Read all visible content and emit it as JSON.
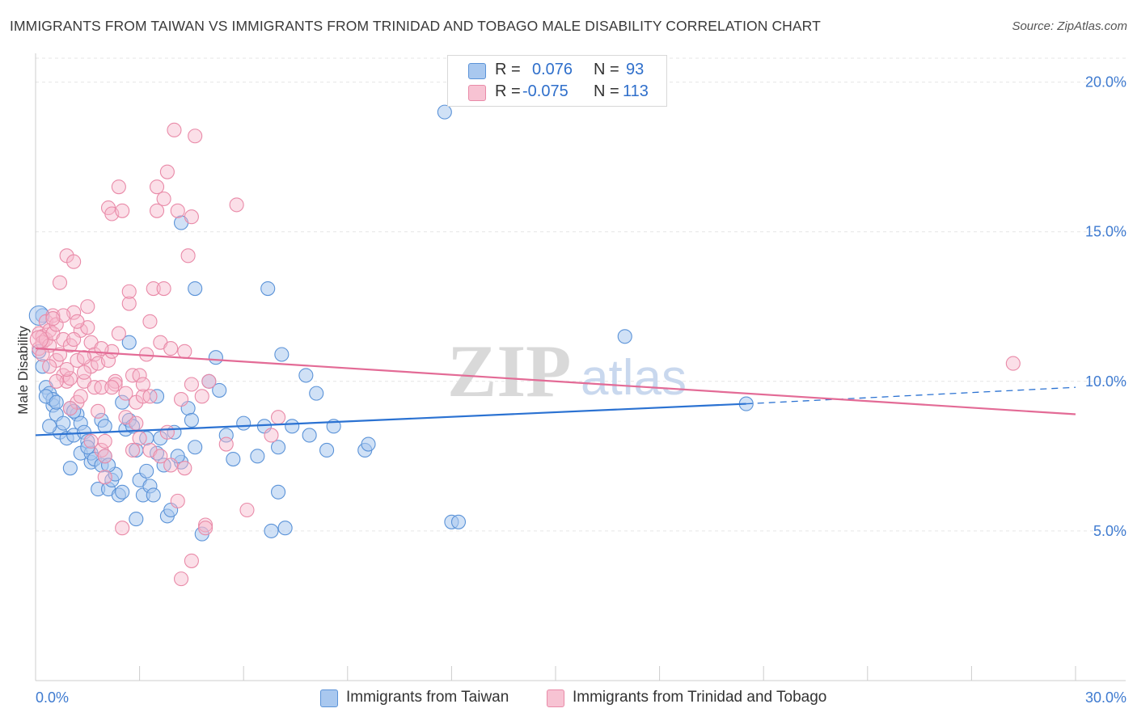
{
  "header": {
    "title": "IMMIGRANTS FROM TAIWAN VS IMMIGRANTS FROM TRINIDAD AND TOBAGO MALE DISABILITY CORRELATION CHART",
    "source": "Source: ZipAtlas.com"
  },
  "watermark": {
    "zip": "ZIP",
    "atlas": "atlas"
  },
  "legend": {
    "r_label": "R =",
    "n_label": "N =",
    "rows": [
      {
        "r": "0.076",
        "n": "93",
        "color": "#8ab4e8"
      },
      {
        "r": "-0.075",
        "n": "113",
        "color": "#f4a7bf"
      }
    ]
  },
  "colors": {
    "blue_fill": "#a9c8ef",
    "blue_stroke": "#5b93d8",
    "blue_line": "#2b72d2",
    "pink_fill": "#f7b8cb",
    "pink_stroke": "#e98aa8",
    "pink_line": "#e36b96",
    "axis_text": "#3f7bd0",
    "grid": "#e6e6e6"
  },
  "chart_data": {
    "type": "scatter",
    "title": "IMMIGRANTS FROM TAIWAN VS IMMIGRANTS FROM TRINIDAD AND TOBAGO MALE DISABILITY CORRELATION CHART",
    "xlabel": "",
    "ylabel": "Male Disability",
    "xlim": [
      0,
      30
    ],
    "ylim": [
      0,
      20.8
    ],
    "x_tick_labels": [
      "0.0%",
      "30.0%"
    ],
    "y_ticks": [
      5,
      10,
      15,
      20
    ],
    "y_tick_labels": [
      "5.0%",
      "10.0%",
      "15.0%",
      "20.0%"
    ],
    "grid": true,
    "series": [
      {
        "name": "Immigrants from Taiwan",
        "r": 0.076,
        "n": 93,
        "trend": {
          "x0": 0,
          "y0": 8.2,
          "x1": 20.5,
          "y1": 9.25,
          "dash_to_x": 30,
          "dash_to_y": 9.8
        },
        "points": [
          [
            0.2,
            12.2
          ],
          [
            0.2,
            10.5
          ],
          [
            0.3,
            9.8
          ],
          [
            0.4,
            9.6
          ],
          [
            0.5,
            9.2
          ],
          [
            0.5,
            9.4
          ],
          [
            0.6,
            8.9
          ],
          [
            0.7,
            8.3
          ],
          [
            0.8,
            8.6
          ],
          [
            0.9,
            8.1
          ],
          [
            1.0,
            9.1
          ],
          [
            1.0,
            7.1
          ],
          [
            1.1,
            8.2
          ],
          [
            1.2,
            8.9
          ],
          [
            1.3,
            7.6
          ],
          [
            1.3,
            8.6
          ],
          [
            1.4,
            8.3
          ],
          [
            1.5,
            8.0
          ],
          [
            1.6,
            7.3
          ],
          [
            1.6,
            7.6
          ],
          [
            1.7,
            7.4
          ],
          [
            1.8,
            6.4
          ],
          [
            1.9,
            8.7
          ],
          [
            1.9,
            7.2
          ],
          [
            2.0,
            8.5
          ],
          [
            2.0,
            7.5
          ],
          [
            2.1,
            6.4
          ],
          [
            2.2,
            6.7
          ],
          [
            2.3,
            6.9
          ],
          [
            2.4,
            6.2
          ],
          [
            2.5,
            9.3
          ],
          [
            2.6,
            8.4
          ],
          [
            2.7,
            8.7
          ],
          [
            2.7,
            11.3
          ],
          [
            2.8,
            8.5
          ],
          [
            2.9,
            7.7
          ],
          [
            2.9,
            5.4
          ],
          [
            3.0,
            6.7
          ],
          [
            3.1,
            6.2
          ],
          [
            3.2,
            8.1
          ],
          [
            3.3,
            6.5
          ],
          [
            3.4,
            6.2
          ],
          [
            3.5,
            9.5
          ],
          [
            3.5,
            7.6
          ],
          [
            3.6,
            8.1
          ],
          [
            3.7,
            7.2
          ],
          [
            3.8,
            5.5
          ],
          [
            3.9,
            5.7
          ],
          [
            4.0,
            8.3
          ],
          [
            4.2,
            7.3
          ],
          [
            4.2,
            15.3
          ],
          [
            4.4,
            9.1
          ],
          [
            4.5,
            8.7
          ],
          [
            4.6,
            7.8
          ],
          [
            4.6,
            13.1
          ],
          [
            4.8,
            4.9
          ],
          [
            5.0,
            10.0
          ],
          [
            5.2,
            10.8
          ],
          [
            5.3,
            9.7
          ],
          [
            5.7,
            7.4
          ],
          [
            6.0,
            8.6
          ],
          [
            6.4,
            7.5
          ],
          [
            6.6,
            8.5
          ],
          [
            6.7,
            13.1
          ],
          [
            6.8,
            5.0
          ],
          [
            7.0,
            7.8
          ],
          [
            7.0,
            6.3
          ],
          [
            7.1,
            10.9
          ],
          [
            7.2,
            5.1
          ],
          [
            7.4,
            8.5
          ],
          [
            7.9,
            8.2
          ],
          [
            7.8,
            10.2
          ],
          [
            8.1,
            9.6
          ],
          [
            8.4,
            7.7
          ],
          [
            8.6,
            8.5
          ],
          [
            9.5,
            7.7
          ],
          [
            9.6,
            7.9
          ],
          [
            11.8,
            19.0
          ],
          [
            12.0,
            5.3
          ],
          [
            12.2,
            5.3
          ],
          [
            17.0,
            11.5
          ],
          [
            20.5,
            9.25
          ],
          [
            0.1,
            11.0
          ],
          [
            0.3,
            9.5
          ],
          [
            0.4,
            8.5
          ],
          [
            0.6,
            9.3
          ],
          [
            1.1,
            9.0
          ],
          [
            1.5,
            7.8
          ],
          [
            2.1,
            7.2
          ],
          [
            2.5,
            6.3
          ],
          [
            3.2,
            7.0
          ],
          [
            4.1,
            7.5
          ],
          [
            5.5,
            8.2
          ]
        ]
      },
      {
        "name": "Immigrants from Trinidad and Tobago",
        "r": -0.075,
        "n": 113,
        "trend": {
          "x0": 0,
          "y0": 11.1,
          "x1": 30,
          "y1": 8.9
        },
        "points": [
          [
            0.1,
            11.6
          ],
          [
            0.1,
            11.1
          ],
          [
            0.2,
            11.5
          ],
          [
            0.2,
            11.3
          ],
          [
            0.3,
            12.0
          ],
          [
            0.3,
            11.4
          ],
          [
            0.4,
            11.7
          ],
          [
            0.4,
            11.2
          ],
          [
            0.5,
            12.2
          ],
          [
            0.5,
            11.6
          ],
          [
            0.6,
            11.9
          ],
          [
            0.6,
            10.7
          ],
          [
            0.7,
            13.3
          ],
          [
            0.7,
            10.9
          ],
          [
            0.8,
            10.2
          ],
          [
            0.8,
            11.4
          ],
          [
            0.9,
            10.0
          ],
          [
            0.9,
            14.2
          ],
          [
            1.0,
            11.2
          ],
          [
            1.0,
            10.1
          ],
          [
            1.1,
            12.3
          ],
          [
            1.1,
            14.0
          ],
          [
            1.2,
            10.7
          ],
          [
            1.2,
            9.3
          ],
          [
            1.3,
            11.7
          ],
          [
            1.3,
            9.5
          ],
          [
            1.4,
            10.0
          ],
          [
            1.5,
            12.5
          ],
          [
            1.5,
            11.8
          ],
          [
            1.6,
            11.3
          ],
          [
            1.6,
            10.5
          ],
          [
            1.7,
            10.9
          ],
          [
            1.7,
            9.8
          ],
          [
            1.8,
            9.0
          ],
          [
            1.8,
            10.6
          ],
          [
            1.9,
            7.7
          ],
          [
            1.9,
            9.8
          ],
          [
            2.0,
            7.5
          ],
          [
            2.0,
            6.8
          ],
          [
            2.1,
            10.7
          ],
          [
            2.1,
            15.8
          ],
          [
            2.2,
            15.6
          ],
          [
            2.3,
            10.0
          ],
          [
            2.3,
            9.9
          ],
          [
            2.4,
            11.6
          ],
          [
            2.4,
            16.5
          ],
          [
            2.5,
            5.1
          ],
          [
            2.5,
            15.7
          ],
          [
            2.6,
            9.6
          ],
          [
            2.7,
            12.6
          ],
          [
            2.7,
            13.0
          ],
          [
            2.8,
            10.2
          ],
          [
            2.8,
            7.7
          ],
          [
            2.9,
            9.3
          ],
          [
            3.0,
            10.2
          ],
          [
            3.0,
            8.1
          ],
          [
            3.1,
            9.5
          ],
          [
            3.2,
            10.9
          ],
          [
            3.3,
            12.0
          ],
          [
            3.3,
            7.7
          ],
          [
            3.4,
            13.1
          ],
          [
            3.5,
            16.5
          ],
          [
            3.5,
            15.7
          ],
          [
            3.6,
            11.3
          ],
          [
            3.6,
            7.5
          ],
          [
            3.7,
            13.1
          ],
          [
            3.7,
            16.1
          ],
          [
            3.8,
            8.3
          ],
          [
            3.8,
            17.0
          ],
          [
            3.9,
            7.2
          ],
          [
            4.0,
            18.4
          ],
          [
            4.1,
            15.7
          ],
          [
            4.1,
            6.0
          ],
          [
            4.2,
            9.4
          ],
          [
            4.3,
            11.0
          ],
          [
            4.4,
            14.2
          ],
          [
            4.5,
            15.5
          ],
          [
            4.5,
            9.9
          ],
          [
            4.6,
            18.2
          ],
          [
            4.8,
            9.5
          ],
          [
            4.9,
            5.2
          ],
          [
            5.0,
            10.0
          ],
          [
            5.5,
            7.9
          ],
          [
            5.8,
            15.9
          ],
          [
            6.1,
            5.7
          ],
          [
            6.8,
            8.2
          ],
          [
            7.0,
            8.8
          ],
          [
            2.2,
            11.0
          ],
          [
            1.4,
            10.3
          ],
          [
            0.9,
            10.4
          ],
          [
            0.6,
            10.0
          ],
          [
            1.2,
            12.0
          ],
          [
            2.6,
            8.8
          ],
          [
            3.1,
            9.9
          ],
          [
            1.9,
            11.1
          ],
          [
            0.4,
            10.5
          ],
          [
            2.9,
            8.6
          ],
          [
            3.3,
            9.5
          ],
          [
            1.6,
            8.0
          ],
          [
            4.3,
            7.1
          ],
          [
            4.2,
            3.4
          ],
          [
            4.5,
            4.0
          ],
          [
            4.9,
            5.1
          ],
          [
            1.0,
            9.1
          ],
          [
            0.8,
            12.2
          ],
          [
            1.4,
            10.8
          ],
          [
            2.2,
            9.8
          ],
          [
            3.9,
            11.1
          ],
          [
            1.1,
            11.4
          ],
          [
            0.2,
            10.9
          ],
          [
            28.2,
            10.6
          ],
          [
            2.0,
            8.0
          ],
          [
            0.5,
            12.1
          ]
        ]
      }
    ]
  },
  "bottom_legend": [
    {
      "label": "Immigrants from Taiwan"
    },
    {
      "label": "Immigrants from Trinidad and Tobago"
    }
  ]
}
